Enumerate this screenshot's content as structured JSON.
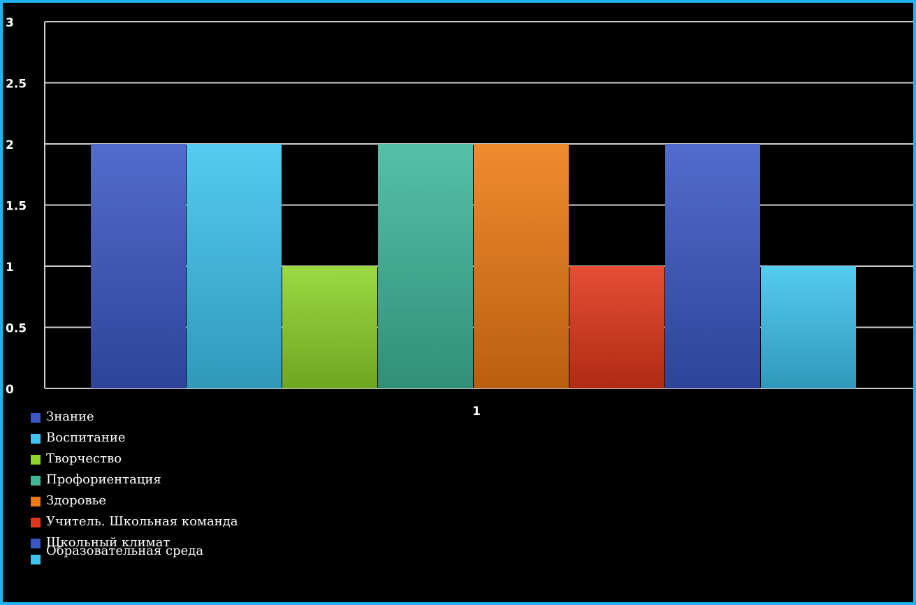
{
  "chart_data": {
    "type": "bar",
    "categories": [
      "1"
    ],
    "ylim": [
      0,
      3
    ],
    "yticks": [
      "0",
      "0.5",
      "1",
      "1.5",
      "2",
      "2.5",
      "3"
    ],
    "grid": true,
    "legend_position": "bottom-left",
    "series": [
      {
        "name": "Знание",
        "values": [
          2
        ],
        "color": "#3b57c4"
      },
      {
        "name": "Воспитание",
        "values": [
          2
        ],
        "color": "#3dc4ee"
      },
      {
        "name": "Творчество",
        "values": [
          1
        ],
        "color": "#8fd42a"
      },
      {
        "name": "Профориентация",
        "values": [
          2
        ],
        "color": "#3fb79a"
      },
      {
        "name": "Здоровье",
        "values": [
          2
        ],
        "color": "#ee7a13"
      },
      {
        "name": "Учитель. Школьная команда",
        "values": [
          1
        ],
        "color": "#e2361a"
      },
      {
        "name": "Школьный климат",
        "values": [
          2
        ],
        "color": "#3b57c4"
      },
      {
        "name": "Образовательная среда",
        "values": [
          1
        ],
        "color": "#3dc4ee"
      }
    ]
  }
}
